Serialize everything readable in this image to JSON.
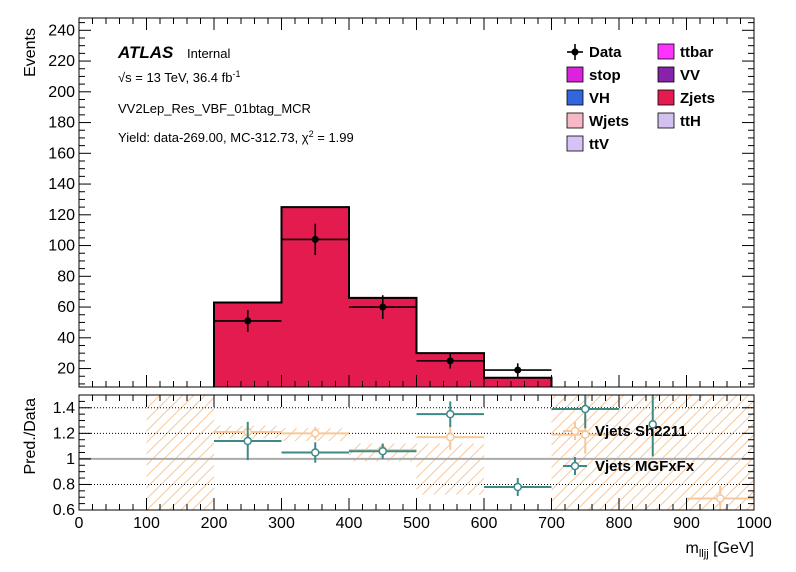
{
  "chart_data": [
    {
      "type": "bar",
      "panel": "main",
      "ylabel": "Events",
      "ylim": [
        8,
        248
      ],
      "yticks": [
        20,
        40,
        60,
        80,
        100,
        120,
        140,
        160,
        180,
        200,
        220,
        240
      ],
      "xlim": [
        0,
        1000
      ],
      "annotations": {
        "atlas": "ATLAS",
        "internal": "Internal",
        "energy_sqrt": "√s",
        "energy_rest": " = 13 TeV, 36.4 fb",
        "energy_exp": "-1",
        "region": "VV2Lep_Res_VBF_01btag_MCR",
        "yield_main": "Yield: data-269.00, MC-312.73, ",
        "yield_chi": "χ",
        "yield_sup": "2",
        "yield_end": " = 1.99"
      },
      "legend_placement": "top-right",
      "legend": [
        {
          "label": "Data",
          "kind": "marker",
          "color": "#000000"
        },
        {
          "label": "ttbar",
          "kind": "box",
          "color": "#ff33ff"
        },
        {
          "label": "stop",
          "kind": "box",
          "color": "#dd22dd"
        },
        {
          "label": "VV",
          "kind": "box",
          "color": "#8822aa"
        },
        {
          "label": "VH",
          "kind": "box",
          "color": "#3366dd"
        },
        {
          "label": "Zjets",
          "kind": "box",
          "color": "#e41b4f"
        },
        {
          "label": "Wjets",
          "kind": "box",
          "color": "#f6b8c4"
        },
        {
          "label": "ttH",
          "kind": "box",
          "color": "#d2c0ee"
        },
        {
          "label": "ttV",
          "kind": "box",
          "color": "#d8c0f8"
        }
      ],
      "stack": {
        "name": "Zjets",
        "color": "#e41b4f",
        "bins": [
          {
            "x0": 200,
            "x1": 300,
            "value": 63
          },
          {
            "x0": 300,
            "x1": 400,
            "value": 125
          },
          {
            "x0": 400,
            "x1": 500,
            "value": 66
          },
          {
            "x0": 500,
            "x1": 600,
            "value": 30
          },
          {
            "x0": 600,
            "x1": 700,
            "value": 14
          }
        ]
      },
      "data_points": [
        {
          "x": 250,
          "y": 51,
          "err": 7.1,
          "xerr": 50
        },
        {
          "x": 350,
          "y": 104,
          "err": 10.2,
          "xerr": 50
        },
        {
          "x": 450,
          "y": 60,
          "err": 7.7,
          "xerr": 50
        },
        {
          "x": 550,
          "y": 25,
          "err": 5.0,
          "xerr": 50
        },
        {
          "x": 650,
          "y": 19,
          "err": 4.4,
          "xerr": 50
        }
      ]
    },
    {
      "type": "scatter",
      "panel": "ratio",
      "ylabel": "Pred./Data",
      "xlabel_main": "m",
      "xlabel_sub": "lljj",
      "xlabel_unit": " [GeV]",
      "ylim": [
        0.6,
        1.5
      ],
      "yticks": [
        0.6,
        0.8,
        1,
        1.2,
        1.4
      ],
      "ytick_labels": [
        "0.6",
        "0.8",
        "1",
        "1.2",
        "1.4"
      ],
      "xlim": [
        0,
        1000
      ],
      "xticks": [
        0,
        100,
        200,
        300,
        400,
        500,
        600,
        700,
        800,
        900,
        1000
      ],
      "xtick_labels": [
        "0",
        "100",
        "200",
        "300",
        "400",
        "500",
        "600",
        "700",
        "800",
        "900",
        "1000"
      ],
      "dotted_lines": [
        0.8,
        1.2,
        1.4
      ],
      "band": {
        "color": "#f8c89a",
        "bins": [
          {
            "x0": 100,
            "x1": 200,
            "lo": 0.6,
            "hi": 1.5
          },
          {
            "x0": 200,
            "x1": 300,
            "lo": 1.16,
            "hi": 1.26
          },
          {
            "x0": 300,
            "x1": 400,
            "lo": 1.14,
            "hi": 1.24
          },
          {
            "x0": 400,
            "x1": 500,
            "lo": 0.98,
            "hi": 1.12
          },
          {
            "x0": 500,
            "x1": 600,
            "lo": 0.72,
            "hi": 1.12
          },
          {
            "x0": 700,
            "x1": 800,
            "lo": 0.6,
            "hi": 1.5
          },
          {
            "x0": 800,
            "x1": 900,
            "lo": 0.6,
            "hi": 1.5
          },
          {
            "x0": 900,
            "x1": 1000,
            "lo": 0.6,
            "hi": 1.5
          }
        ]
      },
      "series": [
        {
          "name": "Vjets Sh2211",
          "color": "#f8c89a",
          "points": [
            {
              "x": 250,
              "y": 1.21,
              "err": 0.05,
              "xerr": 50
            },
            {
              "x": 350,
              "y": 1.2,
              "err": 0.05,
              "xerr": 50
            },
            {
              "x": 450,
              "y": 1.07,
              "err": 0.05,
              "xerr": 50
            },
            {
              "x": 550,
              "y": 1.17,
              "err": 0.1,
              "xerr": 50
            },
            {
              "x": 750,
              "y": 1.19,
              "err": 0.15,
              "xerr": 50
            },
            {
              "x": 950,
              "y": 0.69,
              "err": 0.1,
              "xerr": 50
            }
          ]
        },
        {
          "name": "Vjets MGFxFx",
          "color": "#3c8a86",
          "points": [
            {
              "x": 250,
              "y": 1.14,
              "err": 0.15,
              "xerr": 50
            },
            {
              "x": 350,
              "y": 1.05,
              "err": 0.08,
              "xerr": 50
            },
            {
              "x": 450,
              "y": 1.06,
              "err": 0.06,
              "xerr": 50
            },
            {
              "x": 550,
              "y": 1.35,
              "err": 0.1,
              "xerr": 50
            },
            {
              "x": 650,
              "y": 0.78,
              "err": 0.07,
              "xerr": 50
            },
            {
              "x": 750,
              "y": 1.39,
              "err": 0.15,
              "xerr": 50
            },
            {
              "x": 850,
              "y": 1.27,
              "err": 0.25,
              "xerr": 0
            }
          ]
        }
      ]
    }
  ]
}
